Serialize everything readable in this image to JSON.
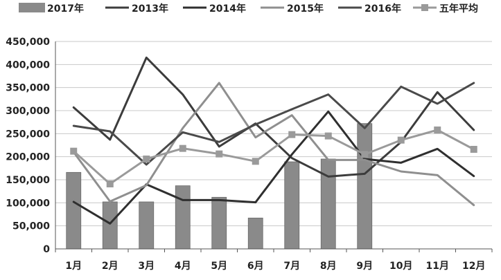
{
  "chart_data": {
    "type": "bar+line",
    "categories": [
      "1月",
      "2月",
      "3月",
      "4月",
      "5月",
      "6月",
      "7月",
      "8月",
      "9月",
      "10月",
      "11月",
      "12月"
    ],
    "ylim": [
      0,
      450000
    ],
    "yticks": [
      "0",
      "50,000",
      "100,000",
      "150,000",
      "200,000",
      "250,000",
      "300,000",
      "350,000",
      "400,000",
      "450,000"
    ],
    "ytick_values": [
      0,
      50000,
      100000,
      150000,
      200000,
      250000,
      300000,
      350000,
      400000,
      450000
    ],
    "grid": true,
    "legend_position": "top",
    "bar_series": {
      "name": "2017年",
      "color": "#8a8a8a",
      "values": [
        166000,
        102000,
        102000,
        137000,
        112000,
        67000,
        189000,
        195000,
        272000,
        null,
        null,
        null
      ]
    },
    "line_series": [
      {
        "name": "2013年",
        "color": "#3c3c3c",
        "values": [
          307000,
          237000,
          415000,
          335000,
          222000,
          272000,
          197000,
          157000,
          163000,
          232000,
          340000,
          258000
        ]
      },
      {
        "name": "2014年",
        "color": "#2f2f2f",
        "values": [
          102000,
          55000,
          140000,
          106000,
          106000,
          101000,
          205000,
          298000,
          195000,
          187000,
          217000,
          158000
        ]
      },
      {
        "name": "2015年",
        "color": "#8f8f8f",
        "values": [
          210000,
          103000,
          138000,
          262000,
          360000,
          242000,
          290000,
          193000,
          193000,
          168000,
          160000,
          95000
        ]
      },
      {
        "name": "2016年",
        "color": "#4a4a4a",
        "values": [
          267000,
          255000,
          183000,
          253000,
          232000,
          270000,
          303000,
          335000,
          262000,
          352000,
          315000,
          360000
        ]
      },
      {
        "name": "五年平均",
        "color": "#9a9a9a",
        "marker": "square",
        "values": [
          212000,
          141000,
          195000,
          218000,
          206000,
          190000,
          248000,
          245000,
          205000,
          236000,
          258000,
          216000
        ]
      }
    ]
  }
}
